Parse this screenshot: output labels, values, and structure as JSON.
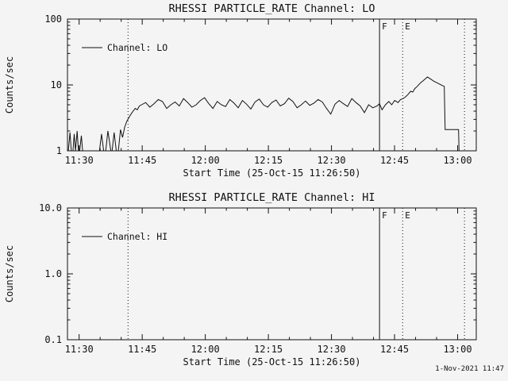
{
  "window": {
    "bg": "#f4f4f4",
    "fg": "#111111"
  },
  "footer": {
    "timestamp": "1-Nov-2021 11:47"
  },
  "chart_data": [
    {
      "type": "line",
      "title": "RHESSI PARTICLE_RATE Channel: LO",
      "xlabel": "Start Time (25-Oct-15 11:26:50)",
      "ylabel": "Counts/sec",
      "yscale": "log",
      "ylim": [
        1,
        100
      ],
      "yticks": [
        {
          "v": 1,
          "label": "1"
        },
        {
          "v": 10,
          "label": "10"
        },
        {
          "v": 100,
          "label": "100"
        }
      ],
      "xlim_minutes": [
        0.4,
        97.6
      ],
      "xticks": [
        {
          "m": 3.17,
          "label": "11:30"
        },
        {
          "m": 18.17,
          "label": "11:45"
        },
        {
          "m": 33.17,
          "label": "12:00"
        },
        {
          "m": 48.17,
          "label": "12:15"
        },
        {
          "m": 63.17,
          "label": "12:30"
        },
        {
          "m": 78.17,
          "label": "12:45"
        },
        {
          "m": 93.17,
          "label": "13:00"
        }
      ],
      "x_minor_step_minutes": 5,
      "legend_label": "Channel: LO",
      "grid": false,
      "vlines": [
        {
          "m": 14.8,
          "style": "dotted"
        },
        {
          "m": 74.6,
          "style": "solid",
          "label": "F"
        },
        {
          "m": 80.1,
          "style": "dotted",
          "label": "E"
        },
        {
          "m": 94.8,
          "style": "dotted"
        }
      ],
      "series": [
        {
          "name": "Channel: LO",
          "points": [
            [
              0.6,
              1
            ],
            [
              1,
              1.9
            ],
            [
              1.3,
              1
            ],
            [
              1.7,
              1
            ],
            [
              2,
              1.8
            ],
            [
              2.3,
              1
            ],
            [
              2.7,
              2
            ],
            [
              3,
              1
            ],
            [
              3.3,
              1
            ],
            [
              3.7,
              1.7
            ],
            [
              4,
              1
            ],
            [
              4.3,
              1
            ],
            [
              5,
              1
            ],
            [
              5.5,
              1
            ],
            [
              6,
              1
            ],
            [
              6.5,
              1
            ],
            [
              7,
              1
            ],
            [
              7.5,
              1
            ],
            [
              8,
              1
            ],
            [
              8.5,
              1.8
            ],
            [
              9,
              1
            ],
            [
              9.5,
              1
            ],
            [
              10,
              2
            ],
            [
              10.3,
              1.5
            ],
            [
              10.7,
              1
            ],
            [
              11,
              1
            ],
            [
              11.5,
              1.9
            ],
            [
              12,
              1
            ],
            [
              12.5,
              1
            ],
            [
              13,
              2.1
            ],
            [
              13.5,
              1.6
            ],
            [
              14,
              2.3
            ],
            [
              14.5,
              2.8
            ],
            [
              15,
              3.2
            ],
            [
              15.5,
              3.6
            ],
            [
              16,
              4
            ],
            [
              16.5,
              4.4
            ],
            [
              17,
              4.2
            ],
            [
              17.5,
              4.8
            ],
            [
              18,
              5
            ],
            [
              19,
              5.4
            ],
            [
              20,
              4.6
            ],
            [
              21,
              5.2
            ],
            [
              22,
              6
            ],
            [
              23,
              5.6
            ],
            [
              24,
              4.4
            ],
            [
              25,
              5
            ],
            [
              26,
              5.5
            ],
            [
              27,
              4.8
            ],
            [
              28,
              6.2
            ],
            [
              29,
              5.4
            ],
            [
              30,
              4.6
            ],
            [
              31,
              5
            ],
            [
              32,
              5.8
            ],
            [
              33,
              6.4
            ],
            [
              34,
              5.2
            ],
            [
              35,
              4.4
            ],
            [
              36,
              5.6
            ],
            [
              37,
              5
            ],
            [
              38,
              4.7
            ],
            [
              39,
              6
            ],
            [
              40,
              5.3
            ],
            [
              41,
              4.5
            ],
            [
              42,
              5.8
            ],
            [
              43,
              5.1
            ],
            [
              44,
              4.3
            ],
            [
              45,
              5.5
            ],
            [
              46,
              6.1
            ],
            [
              47,
              5
            ],
            [
              48,
              4.6
            ],
            [
              49,
              5.4
            ],
            [
              50,
              5.9
            ],
            [
              51,
              4.8
            ],
            [
              52,
              5.2
            ],
            [
              53,
              6.3
            ],
            [
              54,
              5.6
            ],
            [
              55,
              4.5
            ],
            [
              56,
              5
            ],
            [
              57,
              5.7
            ],
            [
              58,
              4.9
            ],
            [
              59,
              5.3
            ],
            [
              60,
              6
            ],
            [
              61,
              5.5
            ],
            [
              62,
              4.4
            ],
            [
              63,
              3.6
            ],
            [
              64,
              5.1
            ],
            [
              65,
              5.8
            ],
            [
              66,
              5.2
            ],
            [
              67,
              4.7
            ],
            [
              68,
              6.2
            ],
            [
              69,
              5.4
            ],
            [
              70,
              4.8
            ],
            [
              71,
              3.8
            ],
            [
              72,
              5
            ],
            [
              73,
              4.5
            ],
            [
              74,
              4.8
            ],
            [
              74.6,
              5.2
            ],
            [
              75.2,
              4.2
            ],
            [
              76,
              5
            ],
            [
              76.8,
              5.6
            ],
            [
              77.5,
              5
            ],
            [
              78.2,
              5.8
            ],
            [
              79,
              5.4
            ],
            [
              79.6,
              6
            ],
            [
              80.2,
              6.2
            ],
            [
              80.8,
              6.6
            ],
            [
              81.4,
              7.2
            ],
            [
              82,
              8
            ],
            [
              82.5,
              7.8
            ],
            [
              83,
              8.8
            ],
            [
              83.5,
              9.4
            ],
            [
              84,
              10.2
            ],
            [
              84.5,
              11
            ],
            [
              85,
              11.6
            ],
            [
              85.5,
              12.4
            ],
            [
              86,
              13.2
            ],
            [
              86.5,
              12.6
            ],
            [
              87,
              12
            ],
            [
              87.5,
              11.4
            ],
            [
              88,
              11
            ],
            [
              88.5,
              10.6
            ],
            [
              89,
              10.2
            ],
            [
              89.5,
              9.8
            ],
            [
              90,
              9.5
            ],
            [
              90.2,
              2.1
            ],
            [
              91,
              2.1
            ],
            [
              92,
              2.1
            ],
            [
              93,
              2.1
            ],
            [
              93.4,
              2.1
            ],
            [
              93.5,
              1
            ],
            [
              94,
              1
            ],
            [
              94.6,
              1
            ]
          ]
        }
      ]
    },
    {
      "type": "line",
      "title": "RHESSI PARTICLE_RATE Channel: HI",
      "xlabel": "Start Time (25-Oct-15 11:26:50)",
      "ylabel": "Counts/sec",
      "yscale": "log",
      "ylim": [
        0.1,
        10
      ],
      "yticks": [
        {
          "v": 0.1,
          "label": "0.1"
        },
        {
          "v": 1,
          "label": "1.0"
        },
        {
          "v": 10,
          "label": "10.0"
        }
      ],
      "xlim_minutes": [
        0.4,
        97.6
      ],
      "xticks": [
        {
          "m": 3.17,
          "label": "11:30"
        },
        {
          "m": 18.17,
          "label": "11:45"
        },
        {
          "m": 33.17,
          "label": "12:00"
        },
        {
          "m": 48.17,
          "label": "12:15"
        },
        {
          "m": 63.17,
          "label": "12:30"
        },
        {
          "m": 78.17,
          "label": "12:45"
        },
        {
          "m": 93.17,
          "label": "13:00"
        }
      ],
      "x_minor_step_minutes": 5,
      "legend_label": "Channel: HI",
      "grid": false,
      "vlines": [
        {
          "m": 14.8,
          "style": "dotted"
        },
        {
          "m": 74.6,
          "style": "solid",
          "label": "F"
        },
        {
          "m": 80.1,
          "style": "dotted",
          "label": "E"
        },
        {
          "m": 94.8,
          "style": "dotted"
        }
      ],
      "series": [
        {
          "name": "Channel: HI",
          "points": []
        }
      ]
    }
  ]
}
